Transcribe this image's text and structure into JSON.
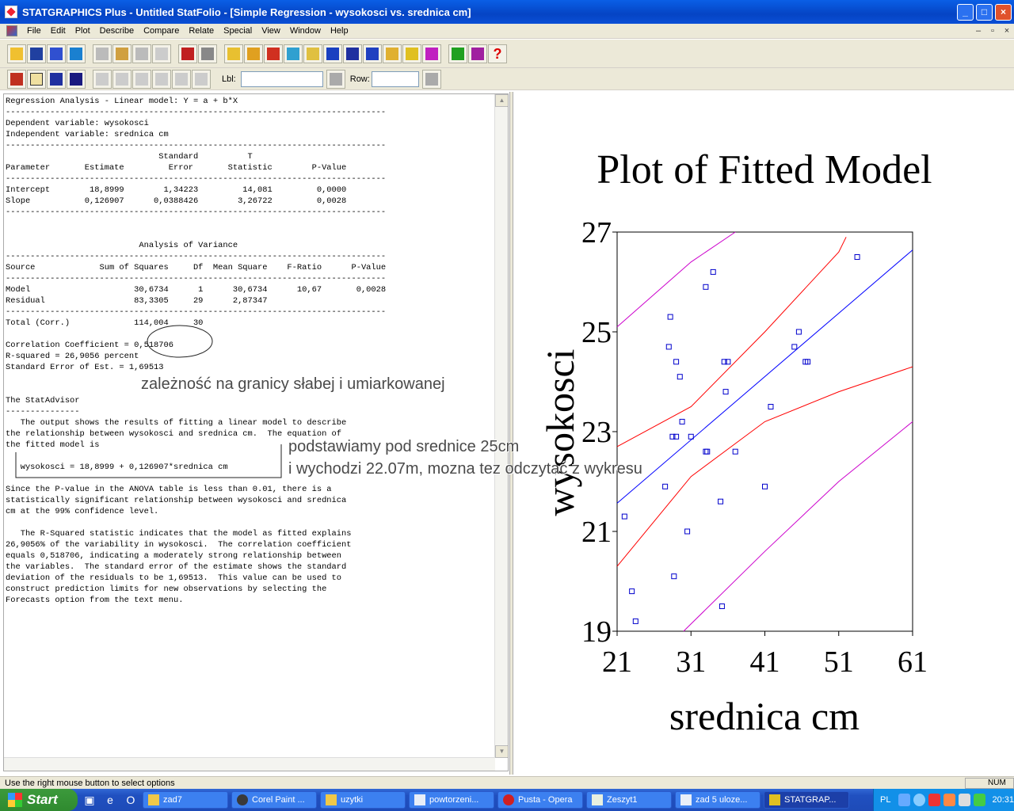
{
  "window": {
    "title": "STATGRAPHICS Plus - Untitled StatFolio - [Simple Regression - wysokosci vs. srednica cm]"
  },
  "menu": [
    "File",
    "Edit",
    "Plot",
    "Describe",
    "Compare",
    "Relate",
    "Special",
    "View",
    "Window",
    "Help"
  ],
  "toolbar2": {
    "lbl_label": "Lbl:",
    "row_label": "Row:"
  },
  "output_text": "Regression Analysis - Linear model: Y = a + b*X\n-----------------------------------------------------------------------------\nDependent variable: wysokosci\nIndependent variable: srednica cm\n-----------------------------------------------------------------------------\n                               Standard          T\nParameter       Estimate         Error       Statistic        P-Value\n-----------------------------------------------------------------------------\nIntercept        18,8999        1,34223         14,081         0,0000\nSlope           0,126907      0,0388426        3,26722         0,0028\n-----------------------------------------------------------------------------\n\n\n                           Analysis of Variance\n-----------------------------------------------------------------------------\nSource             Sum of Squares     Df  Mean Square    F-Ratio      P-Value\n-----------------------------------------------------------------------------\nModel                     30,6734      1      30,6734      10,67       0,0028\nResidual                  83,3305     29      2,87347\n-----------------------------------------------------------------------------\nTotal (Corr.)             114,004     30\n\nCorrelation Coefficient = 0,518706\nR-squared = 26,9056 percent\nStandard Error of Est. = 1,69513\n\n\nThe StatAdvisor\n---------------\n   The output shows the results of fitting a linear model to describe\nthe relationship between wysokosci and srednica cm.  The equation of\nthe fitted model is\n\n   wysokosci = 18,8999 + 0,126907*srednica cm\n\nSince the P-value in the ANOVA table is less than 0.01, there is a\nstatistically significant relationship between wysokosci and srednica\ncm at the 99% confidence level.\n\n   The R-Squared statistic indicates that the model as fitted explains\n26,9056% of the variability in wysokosci.  The correlation coefficient\nequals 0,518706, indicating a moderately strong relationship between\nthe variables.  The standard error of the estimate shows the standard\ndeviation of the residuals to be 1,69513.  This value can be used to\nconstruct prediction limits for new observations by selecting the\nForecasts option from the text menu.",
  "annotations": {
    "a1": "zależność na granicy słabej i umiarkowanej",
    "a2": "podstawiamy pod srednice 25cm",
    "a3": "i wychodzi 22.07m, mozna tez odczytać z wykresu"
  },
  "chart_data": {
    "type": "scatter",
    "title": "Plot of Fitted Model",
    "xlabel": "srednica cm",
    "ylabel": "wysokosci",
    "xlim": [
      21,
      61
    ],
    "ylim": [
      19,
      27
    ],
    "xticks": [
      21,
      31,
      41,
      51,
      61
    ],
    "yticks": [
      19,
      21,
      23,
      25,
      27
    ],
    "points": [
      [
        22,
        21.3
      ],
      [
        23,
        19.8
      ],
      [
        23.5,
        19.2
      ],
      [
        28,
        24.7
      ],
      [
        28.2,
        25.3
      ],
      [
        28.5,
        22.9
      ],
      [
        28.7,
        20.1
      ],
      [
        29,
        24.4
      ],
      [
        29,
        22.9
      ],
      [
        29.5,
        24.1
      ],
      [
        29.8,
        23.2
      ],
      [
        30.5,
        21.0
      ],
      [
        31,
        22.9
      ],
      [
        33,
        25.9
      ],
      [
        33,
        22.6
      ],
      [
        34,
        26.2
      ],
      [
        35,
        21.6
      ],
      [
        35.2,
        19.5
      ],
      [
        35.7,
        23.8
      ],
      [
        36,
        24.4
      ],
      [
        37,
        22.6
      ],
      [
        41,
        21.9
      ],
      [
        41.8,
        23.5
      ],
      [
        45,
        24.7
      ],
      [
        45.6,
        25.0
      ],
      [
        46.5,
        24.4
      ],
      [
        46.8,
        24.4
      ],
      [
        53.5,
        26.5
      ],
      [
        27.5,
        21.9
      ],
      [
        35.5,
        24.4
      ],
      [
        33.2,
        22.6
      ]
    ],
    "fit": {
      "intercept": 18.8999,
      "slope": 0.126907
    },
    "confidence": {
      "lower": [
        [
          21,
          20.3
        ],
        [
          31,
          22.1
        ],
        [
          41,
          23.2
        ],
        [
          51,
          23.8
        ],
        [
          61,
          24.3
        ]
      ],
      "upper": [
        [
          21,
          22.7
        ],
        [
          31,
          23.5
        ],
        [
          41,
          25.0
        ],
        [
          51,
          26.6
        ],
        [
          52,
          26.9
        ]
      ]
    },
    "prediction": {
      "lower": [
        [
          30,
          19.0
        ],
        [
          41,
          20.6
        ],
        [
          51,
          22.0
        ],
        [
          61,
          23.2
        ]
      ],
      "upper": [
        [
          21,
          25.1
        ],
        [
          31,
          26.4
        ],
        [
          37,
          27.0
        ]
      ]
    },
    "colors": {
      "points": "#0000cc",
      "fit": "#0000ff",
      "confidence": "#ff0000",
      "prediction": "#cc00cc"
    }
  },
  "statusbar": {
    "text": "Use the right mouse button to select options",
    "num": "NUM"
  },
  "taskbar": {
    "start": "Start",
    "tasks": [
      "zad7",
      "Corel Paint ...",
      "uzytki",
      "powtorzeni...",
      "Pusta - Opera",
      "Zeszyt1",
      "zad 5 uloze...",
      "STATGRAP..."
    ],
    "lang": "PL",
    "time": "20:31"
  }
}
